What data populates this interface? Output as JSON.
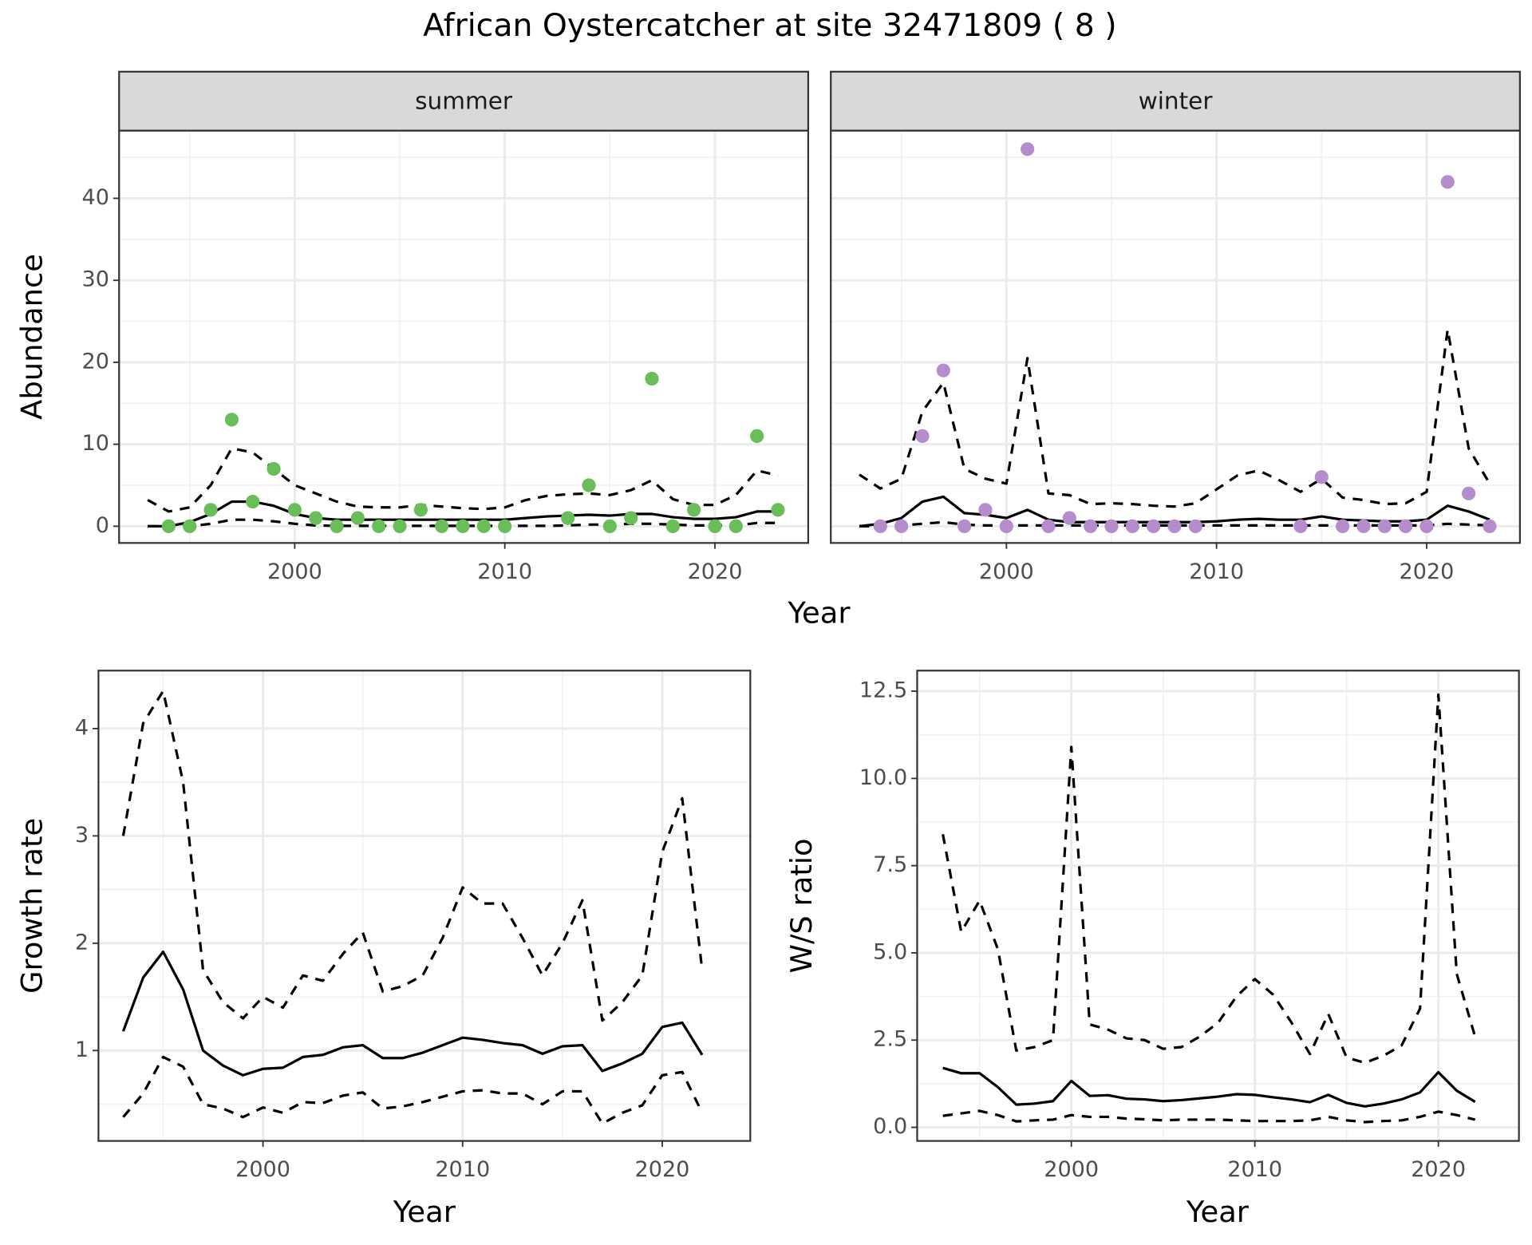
{
  "title": "African Oystercatcher at site 32471809 ( 8 )",
  "chart_data": [
    {
      "type": "line",
      "facet": "summer",
      "xlabel": "Year",
      "ylabel": "Abundance",
      "xlim": [
        1991.64,
        2024.44
      ],
      "xticks": [
        2000,
        2010,
        2020
      ],
      "ylim": [
        -2.04,
        48.26
      ],
      "yticks": [
        0,
        10,
        20,
        30,
        40
      ],
      "grid": true,
      "x": [
        1993,
        1994,
        1995,
        1996,
        1997,
        1998,
        1999,
        2000,
        2001,
        2002,
        2003,
        2004,
        2005,
        2006,
        2007,
        2008,
        2009,
        2010,
        2011,
        2012,
        2013,
        2014,
        2015,
        2016,
        2017,
        2018,
        2019,
        2020,
        2021,
        2022,
        2023
      ],
      "series": [
        {
          "style": "solid",
          "color": "#000000",
          "values": [
            0,
            0,
            0.5,
            1.5,
            3,
            3,
            2.5,
            1.5,
            1,
            0.8,
            0.8,
            0.8,
            0.8,
            0.8,
            0.8,
            0.8,
            0.8,
            0.8,
            1,
            1.2,
            1.3,
            1.4,
            1.3,
            1.5,
            1.5,
            1.1,
            0.9,
            0.9,
            1.1,
            1.8,
            1.8
          ]
        },
        {
          "style": "dashed",
          "color": "#000000",
          "values": [
            3.2,
            1.8,
            2.3,
            5,
            9.5,
            9,
            7,
            5,
            4,
            3,
            2.4,
            2.3,
            2.3,
            2.6,
            2.4,
            2.2,
            2.1,
            2.3,
            3.2,
            3.7,
            3.9,
            4,
            3.8,
            4.4,
            5.6,
            3.3,
            2.6,
            2.6,
            3.8,
            6.8,
            6.2
          ]
        },
        {
          "style": "dashed",
          "color": "#000000",
          "values": [
            0,
            0,
            0,
            0.3,
            0.8,
            0.8,
            0.6,
            0.3,
            0.1,
            0.05,
            0.05,
            0.05,
            0.05,
            0.05,
            0.05,
            0.05,
            0.05,
            0.05,
            0.05,
            0.05,
            0.1,
            0.2,
            0.2,
            0.3,
            0.3,
            0.2,
            0.1,
            0.1,
            0.1,
            0.4,
            0.4
          ]
        },
        {
          "style": "points",
          "color": "#6abe5a",
          "x": [
            1994,
            1995,
            1996,
            1997,
            1998,
            1999,
            2000,
            2001,
            2002,
            2003,
            2004,
            2005,
            2006,
            2007,
            2008,
            2009,
            2010,
            2013,
            2014,
            2015,
            2016,
            2017,
            2018,
            2019,
            2020,
            2021,
            2022,
            2023
          ],
          "values": [
            0,
            0,
            2,
            13,
            3,
            7,
            2,
            1,
            0,
            1,
            0,
            0,
            2,
            0,
            0,
            0,
            0,
            1,
            5,
            0,
            1,
            18,
            0,
            2,
            0,
            0,
            11,
            2
          ]
        }
      ]
    },
    {
      "type": "line",
      "facet": "winter",
      "xlim": [
        1991.64,
        2024.44
      ],
      "xticks": [
        2000,
        2010,
        2020
      ],
      "ylim": [
        -2.04,
        48.26
      ],
      "yticks": [
        0,
        10,
        20,
        30,
        40
      ],
      "grid": true,
      "x": [
        1993,
        1994,
        1995,
        1996,
        1997,
        1998,
        1999,
        2000,
        2001,
        2002,
        2003,
        2004,
        2005,
        2006,
        2007,
        2008,
        2009,
        2010,
        2011,
        2012,
        2013,
        2014,
        2015,
        2016,
        2017,
        2018,
        2019,
        2020,
        2021,
        2022,
        2023
      ],
      "series": [
        {
          "style": "solid",
          "color": "#000000",
          "values": [
            0,
            0.3,
            1,
            3,
            3.6,
            1.6,
            1.4,
            1,
            2,
            0.8,
            0.5,
            0.5,
            0.5,
            0.5,
            0.5,
            0.5,
            0.5,
            0.6,
            0.8,
            0.9,
            0.8,
            0.8,
            1.2,
            0.8,
            0.7,
            0.6,
            0.6,
            0.8,
            2.5,
            1.8,
            0.8
          ]
        },
        {
          "style": "dashed",
          "color": "#000000",
          "values": [
            6.3,
            4.6,
            5.8,
            14,
            17.5,
            7,
            5.8,
            5.2,
            20.5,
            4,
            3.8,
            2.7,
            2.8,
            2.7,
            2.5,
            2.4,
            2.8,
            4.5,
            6.2,
            6.8,
            5.6,
            4.2,
            5.8,
            3.5,
            3.2,
            2.7,
            2.8,
            4.2,
            24,
            9.5,
            5.2
          ]
        },
        {
          "style": "dashed",
          "color": "#000000",
          "values": [
            0,
            0,
            0.1,
            0.3,
            0.5,
            0.2,
            0.1,
            0.1,
            0.1,
            0.1,
            0.1,
            0.1,
            0.1,
            0.1,
            0.1,
            0.1,
            0.1,
            0.1,
            0.1,
            0.1,
            0.1,
            0.1,
            0.1,
            0.1,
            0.1,
            0.1,
            0.1,
            0.1,
            0.3,
            0.2,
            0.1
          ]
        },
        {
          "style": "points",
          "color": "#b58ccc",
          "x": [
            1994,
            1995,
            1996,
            1997,
            1998,
            1999,
            2000,
            2001,
            2002,
            2003,
            2004,
            2005,
            2006,
            2007,
            2008,
            2009,
            2014,
            2015,
            2016,
            2017,
            2018,
            2019,
            2020,
            2021,
            2022,
            2023
          ],
          "values": [
            0,
            0,
            11,
            19,
            0,
            2,
            0,
            46,
            0,
            1,
            0,
            0,
            0,
            0,
            0,
            0,
            0,
            6,
            0,
            0,
            0,
            0,
            0,
            42,
            4,
            0
          ]
        }
      ]
    },
    {
      "type": "line",
      "xlabel": "Year",
      "ylabel": "Growth rate",
      "xlim": [
        1991.76,
        2024.41
      ],
      "xticks": [
        2000,
        2010,
        2020
      ],
      "ylim": [
        0.158,
        4.54
      ],
      "yticks": [
        1,
        2,
        3,
        4
      ],
      "grid": true,
      "x": [
        1993,
        1994,
        1995,
        1996,
        1997,
        1998,
        1999,
        2000,
        2001,
        2002,
        2003,
        2004,
        2005,
        2006,
        2007,
        2008,
        2009,
        2010,
        2011,
        2012,
        2013,
        2014,
        2015,
        2016,
        2017,
        2018,
        2019,
        2020,
        2021,
        2022
      ],
      "series": [
        {
          "style": "solid",
          "color": "#000000",
          "values": [
            1.18,
            1.68,
            1.92,
            1.57,
            1.0,
            0.86,
            0.77,
            0.83,
            0.84,
            0.94,
            0.96,
            1.03,
            1.05,
            0.93,
            0.93,
            0.98,
            1.05,
            1.12,
            1.1,
            1.07,
            1.05,
            0.97,
            1.04,
            1.05,
            0.81,
            0.88,
            0.97,
            1.22,
            1.26,
            0.96
          ]
        },
        {
          "style": "dashed",
          "color": "#000000",
          "values": [
            3.0,
            4.05,
            4.35,
            3.5,
            1.75,
            1.45,
            1.3,
            1.5,
            1.4,
            1.7,
            1.65,
            1.9,
            2.1,
            1.55,
            1.6,
            1.7,
            2.05,
            2.52,
            2.37,
            2.37,
            2.05,
            1.7,
            2.0,
            2.4,
            1.28,
            1.45,
            1.7,
            2.85,
            3.35,
            1.75
          ]
        },
        {
          "style": "dashed",
          "color": "#000000",
          "values": [
            0.38,
            0.6,
            0.94,
            0.85,
            0.5,
            0.46,
            0.38,
            0.47,
            0.42,
            0.52,
            0.51,
            0.58,
            0.61,
            0.46,
            0.48,
            0.52,
            0.57,
            0.62,
            0.63,
            0.6,
            0.6,
            0.5,
            0.62,
            0.62,
            0.32,
            0.42,
            0.49,
            0.77,
            0.8,
            0.42
          ]
        }
      ]
    },
    {
      "type": "line",
      "xlabel": "Year",
      "ylabel": "W/S ratio",
      "xlim": [
        1991.6,
        2024.39
      ],
      "xticks": [
        2000,
        2010,
        2020
      ],
      "ylim": [
        -0.39,
        13.09
      ],
      "yticks": [
        {
          "value": 0,
          "label": "0.0"
        },
        2.5,
        {
          "value": 5,
          "label": "5.0"
        },
        7.5,
        {
          "value": 10,
          "label": "10.0"
        },
        12.5
      ],
      "grid": true,
      "x": [
        1993,
        1994,
        1995,
        1996,
        1997,
        1998,
        1999,
        2000,
        2001,
        2002,
        2003,
        2004,
        2005,
        2006,
        2007,
        2008,
        2009,
        2010,
        2011,
        2012,
        2013,
        2014,
        2015,
        2016,
        2017,
        2018,
        2019,
        2020,
        2021,
        2022
      ],
      "series": [
        {
          "style": "solid",
          "color": "#000000",
          "values": [
            1.7,
            1.55,
            1.55,
            1.15,
            0.65,
            0.68,
            0.75,
            1.33,
            0.9,
            0.92,
            0.82,
            0.8,
            0.75,
            0.78,
            0.83,
            0.88,
            0.95,
            0.93,
            0.86,
            0.8,
            0.72,
            0.93,
            0.7,
            0.6,
            0.68,
            0.8,
            1.0,
            1.58,
            1.05,
            0.73
          ]
        },
        {
          "style": "dashed",
          "color": "#000000",
          "values": [
            8.4,
            5.6,
            6.5,
            5.1,
            2.2,
            2.3,
            2.5,
            10.9,
            2.95,
            2.8,
            2.55,
            2.5,
            2.25,
            2.3,
            2.6,
            3.0,
            3.75,
            4.25,
            3.8,
            3.0,
            2.1,
            3.25,
            2.0,
            1.85,
            2.05,
            2.35,
            3.4,
            12.4,
            4.4,
            2.6
          ]
        },
        {
          "style": "dashed",
          "color": "#000000",
          "values": [
            0.33,
            0.4,
            0.47,
            0.35,
            0.17,
            0.2,
            0.22,
            0.35,
            0.3,
            0.3,
            0.25,
            0.23,
            0.2,
            0.22,
            0.22,
            0.22,
            0.2,
            0.18,
            0.18,
            0.18,
            0.2,
            0.3,
            0.2,
            0.15,
            0.18,
            0.2,
            0.3,
            0.45,
            0.35,
            0.22
          ]
        }
      ]
    }
  ]
}
